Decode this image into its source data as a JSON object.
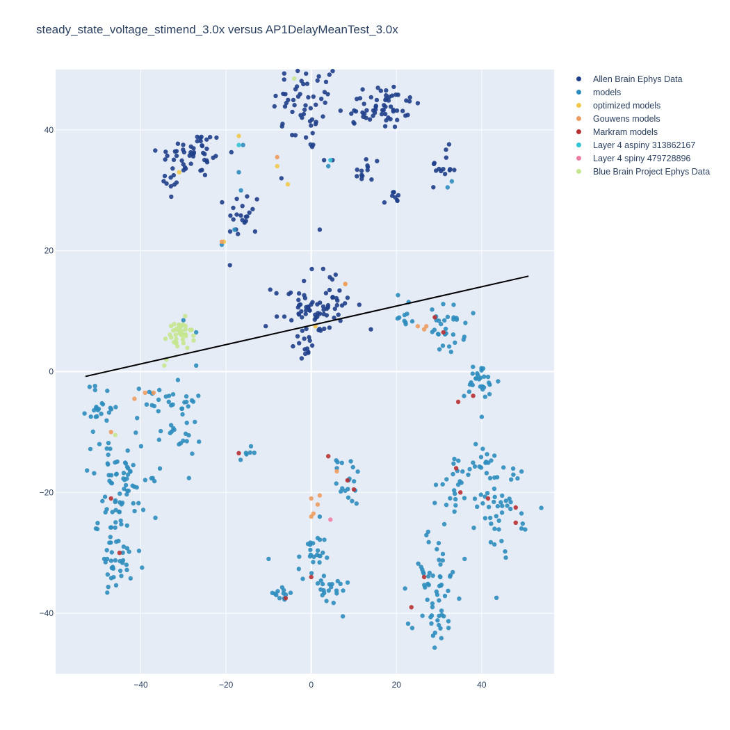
{
  "chart_data": {
    "type": "scatter",
    "title": "steady_state_voltage_stimend_3.0x versus AP1DelayMeanTest_3.0x",
    "xlabel": "",
    "ylabel": "",
    "xlim": [
      -60,
      57
    ],
    "ylim": [
      -50,
      50
    ],
    "x_ticks": [
      -40,
      -20,
      0,
      20,
      40
    ],
    "y_ticks": [
      -40,
      -20,
      0,
      20,
      40
    ],
    "grid": true,
    "legend_position": "right",
    "regression_line": {
      "x": [
        -53,
        51
      ],
      "y": [
        -0.8,
        15.8
      ],
      "color": "#000000"
    },
    "series": [
      {
        "name": "Allen Brain Ephys Data",
        "color": "#1f3f8a",
        "clusters": [
          {
            "cx": -1,
            "cy": 44,
            "sx": 4,
            "sy": 4,
            "n": 55
          },
          {
            "cx": 16,
            "cy": 44,
            "sx": 5,
            "sy": 2,
            "n": 60
          },
          {
            "cx": -28,
            "cy": 36,
            "sx": 4,
            "sy": 2,
            "n": 50
          },
          {
            "cx": -33,
            "cy": 31,
            "sx": 1,
            "sy": 1.5,
            "n": 8
          },
          {
            "cx": -16,
            "cy": 26,
            "sx": 2,
            "sy": 2,
            "n": 22
          },
          {
            "cx": 13,
            "cy": 33,
            "sx": 1.5,
            "sy": 1.5,
            "n": 12
          },
          {
            "cx": 19,
            "cy": 28.5,
            "sx": 1,
            "sy": 0.8,
            "n": 8
          },
          {
            "cx": 31,
            "cy": 34,
            "sx": 1.5,
            "sy": 1.5,
            "n": 14
          },
          {
            "cx": -2,
            "cy": 10,
            "sx": 3.5,
            "sy": 3,
            "n": 45
          },
          {
            "cx": 5,
            "cy": 11,
            "sx": 3,
            "sy": 2.5,
            "n": 30
          },
          {
            "cx": -1.5,
            "cy": 4.5,
            "sx": 1,
            "sy": 1,
            "n": 10
          }
        ],
        "points": [
          [
            2,
            23.5
          ],
          [
            14,
            7
          ],
          [
            -7,
            32
          ],
          [
            3,
            35
          ],
          [
            5,
            35
          ]
        ]
      },
      {
        "name": "models",
        "color": "#2d8dbe",
        "clusters": [
          {
            "cx": -49,
            "cy": -6,
            "sx": 2,
            "sy": 2,
            "n": 22
          },
          {
            "cx": -47,
            "cy": -14,
            "sx": 3,
            "sy": 2,
            "n": 20
          },
          {
            "cx": -36,
            "cy": -5,
            "sx": 3,
            "sy": 1.5,
            "n": 14
          },
          {
            "cx": -31,
            "cy": -9,
            "sx": 2.5,
            "sy": 3,
            "n": 30
          },
          {
            "cx": -46,
            "cy": -24,
            "sx": 2,
            "sy": 5,
            "n": 40
          },
          {
            "cx": -42,
            "cy": -20,
            "sx": 3,
            "sy": 2,
            "n": 26
          },
          {
            "cx": -45,
            "cy": -32,
            "sx": 3,
            "sy": 2,
            "n": 26
          },
          {
            "cx": 40,
            "cy": -2,
            "sx": 2,
            "sy": 2,
            "n": 28
          },
          {
            "cx": 22,
            "cy": 10,
            "sx": 1,
            "sy": 1.5,
            "n": 10
          },
          {
            "cx": 32,
            "cy": 7,
            "sx": 2,
            "sy": 2,
            "n": 30
          },
          {
            "cx": 38,
            "cy": -15,
            "sx": 3,
            "sy": 1.5,
            "n": 22
          },
          {
            "cx": 45,
            "cy": -22,
            "sx": 3,
            "sy": 4,
            "n": 45
          },
          {
            "cx": 34,
            "cy": -20,
            "sx": 2,
            "sy": 2,
            "n": 18
          },
          {
            "cx": 9,
            "cy": -18,
            "sx": 1.5,
            "sy": 2,
            "n": 18
          },
          {
            "cx": 0,
            "cy": -31,
            "sx": 1.5,
            "sy": 2,
            "n": 22
          },
          {
            "cx": 4,
            "cy": -36,
            "sx": 2.5,
            "sy": 1.5,
            "n": 22
          },
          {
            "cx": -7,
            "cy": -37,
            "sx": 2,
            "sy": 0.8,
            "n": 12
          },
          {
            "cx": 29,
            "cy": -34,
            "sx": 3,
            "sy": 4,
            "n": 45
          },
          {
            "cx": 30,
            "cy": -42,
            "sx": 1.5,
            "sy": 1.5,
            "n": 14
          },
          {
            "cx": -15,
            "cy": -13.5,
            "sx": 1,
            "sy": 0.5,
            "n": 6
          }
        ],
        "points": [
          [
            -30,
            8.5
          ],
          [
            -27,
            1
          ],
          [
            -27,
            6.5
          ],
          [
            -26.5,
            -4
          ],
          [
            -17,
            33
          ],
          [
            -16,
            37.5
          ],
          [
            -16.5,
            30
          ],
          [
            -18,
            23.5
          ],
          [
            -21,
            21
          ],
          [
            4,
            34
          ],
          [
            32,
            30.5
          ],
          [
            33,
            31.5
          ],
          [
            2,
            -24
          ],
          [
            6,
            -16
          ],
          [
            -10,
            -31
          ],
          [
            36,
            -31
          ]
        ]
      },
      {
        "name": "optimized models",
        "color": "#f2c94c",
        "clusters": [],
        "points": [
          [
            -17,
            39
          ],
          [
            -8,
            34
          ],
          [
            -5.5,
            31
          ],
          [
            -31,
            33
          ],
          [
            1,
            7.5
          ],
          [
            8,
            14.5
          ],
          [
            -20.5,
            21.5
          ]
        ]
      },
      {
        "name": "Gouwens models",
        "color": "#ed9c5f",
        "clusters": [],
        "points": [
          [
            -8,
            35.5
          ],
          [
            -39,
            -3.5
          ],
          [
            -37,
            -3.5
          ],
          [
            -41.5,
            -4.5
          ],
          [
            25,
            7.5
          ],
          [
            26.5,
            7
          ],
          [
            27,
            7.5
          ],
          [
            0,
            -21
          ],
          [
            1.5,
            -22
          ],
          [
            2,
            -20.5
          ],
          [
            0.5,
            -23.5
          ],
          [
            0,
            -24
          ],
          [
            6,
            -16.5
          ],
          [
            -47,
            -10
          ],
          [
            -21,
            21.5
          ],
          [
            8,
            14.5
          ]
        ]
      },
      {
        "name": "Markram models",
        "color": "#b83032",
        "clusters": [],
        "points": [
          [
            29,
            9
          ],
          [
            31,
            6.5
          ],
          [
            38,
            -4
          ],
          [
            34.5,
            -5
          ],
          [
            4,
            -14
          ],
          [
            -17,
            -13.5
          ],
          [
            -47,
            -21
          ],
          [
            -45,
            -30
          ],
          [
            8.5,
            -18
          ],
          [
            10,
            -19.5
          ],
          [
            0,
            -34
          ],
          [
            -6,
            -37.5
          ],
          [
            23.5,
            -39
          ],
          [
            26.5,
            -34
          ],
          [
            34,
            -16
          ],
          [
            35,
            -20
          ],
          [
            41.5,
            -21
          ],
          [
            48,
            -22.5
          ],
          [
            48,
            -25
          ]
        ]
      },
      {
        "name": "Layer 4 aspiny 313862167",
        "color": "#35c4d6",
        "clusters": [],
        "points": [
          [
            -17,
            37.5
          ],
          [
            4.5,
            35
          ]
        ]
      },
      {
        "name": "Layer 4 spiny 479728896",
        "color": "#f07fa4",
        "clusters": [],
        "points": [
          [
            4.5,
            -24.5
          ]
        ]
      },
      {
        "name": "Blue Brain Project Ephys Data",
        "color": "#c5e58f",
        "clusters": [
          {
            "cx": -31,
            "cy": 6,
            "sx": 1.5,
            "sy": 1.3,
            "n": 38
          }
        ],
        "points": [
          [
            -34.5,
            1
          ],
          [
            -34,
            2
          ],
          [
            -4,
            48.5
          ],
          [
            -46,
            -10.5
          ]
        ]
      }
    ]
  }
}
